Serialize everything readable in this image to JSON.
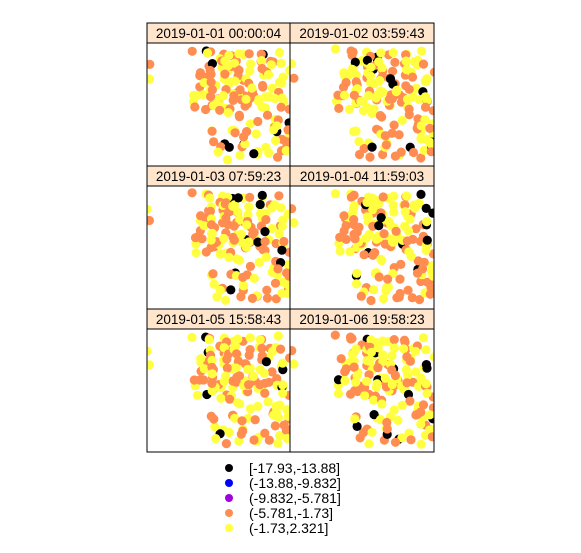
{
  "colors": {
    "strip_bg": "#FFE5CC",
    "border": "#000000",
    "bins": [
      "#000004",
      "#0000FF",
      "#A000E0",
      "#FF8C50",
      "#FFFF40"
    ]
  },
  "chart_data": {
    "type": "scatter",
    "layout": "3 rows x 2 columns of map panels (lattice-style)",
    "axes_shown": false,
    "panels": [
      {
        "label": "2019-01-01 00:00:04"
      },
      {
        "label": "2019-01-02 03:59:43"
      },
      {
        "label": "2019-01-03 07:59:23"
      },
      {
        "label": "2019-01-04 11:59:03"
      },
      {
        "label": "2019-01-05 15:58:43"
      },
      {
        "label": "2019-01-06 19:58:23"
      }
    ],
    "legend": {
      "placement": "bottom",
      "entries": [
        {
          "label": "[-17.93,-13.88]",
          "color": "#000004"
        },
        {
          "label": "(-13.88,-9.832]",
          "color": "#0000FF"
        },
        {
          "label": "(-9.832,-5.781]",
          "color": "#A000E0"
        },
        {
          "label": "(-5.781,-1.73]",
          "color": "#FF8C50"
        },
        {
          "label": "(-1.73,2.321]",
          "color": "#FFFF40"
        }
      ]
    }
  }
}
